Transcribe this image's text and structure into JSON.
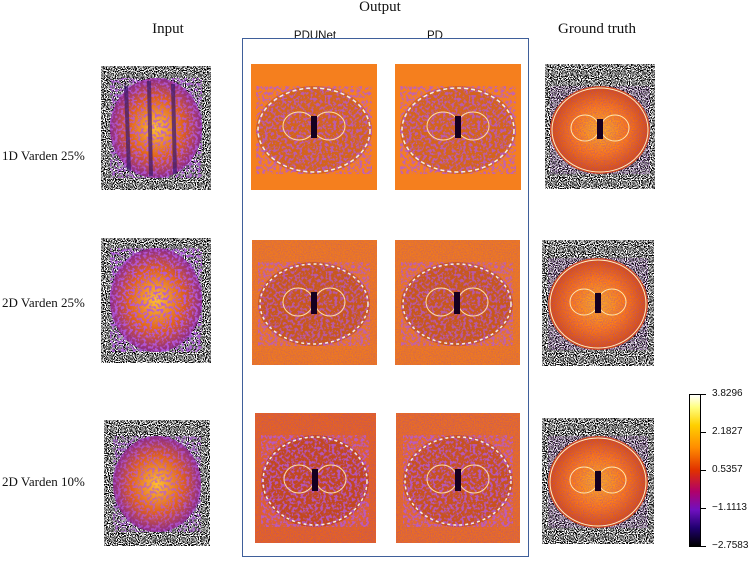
{
  "headers": {
    "output": "Output",
    "input": "Input",
    "ground_truth": "Ground truth",
    "pdunet": "PDUNet",
    "pd": "PD"
  },
  "rows": [
    {
      "label": "1D Varden 25%"
    },
    {
      "label": "2D Varden 25%"
    },
    {
      "label": "2D Varden 10%"
    }
  ],
  "colorbar": {
    "ticks": [
      "3.8296",
      "2.1827",
      "0.5357",
      "−1.1113",
      "−2.7583"
    ]
  },
  "colors": {
    "box_border": "#3f5f9a",
    "background_orange": "#f07f1f"
  }
}
